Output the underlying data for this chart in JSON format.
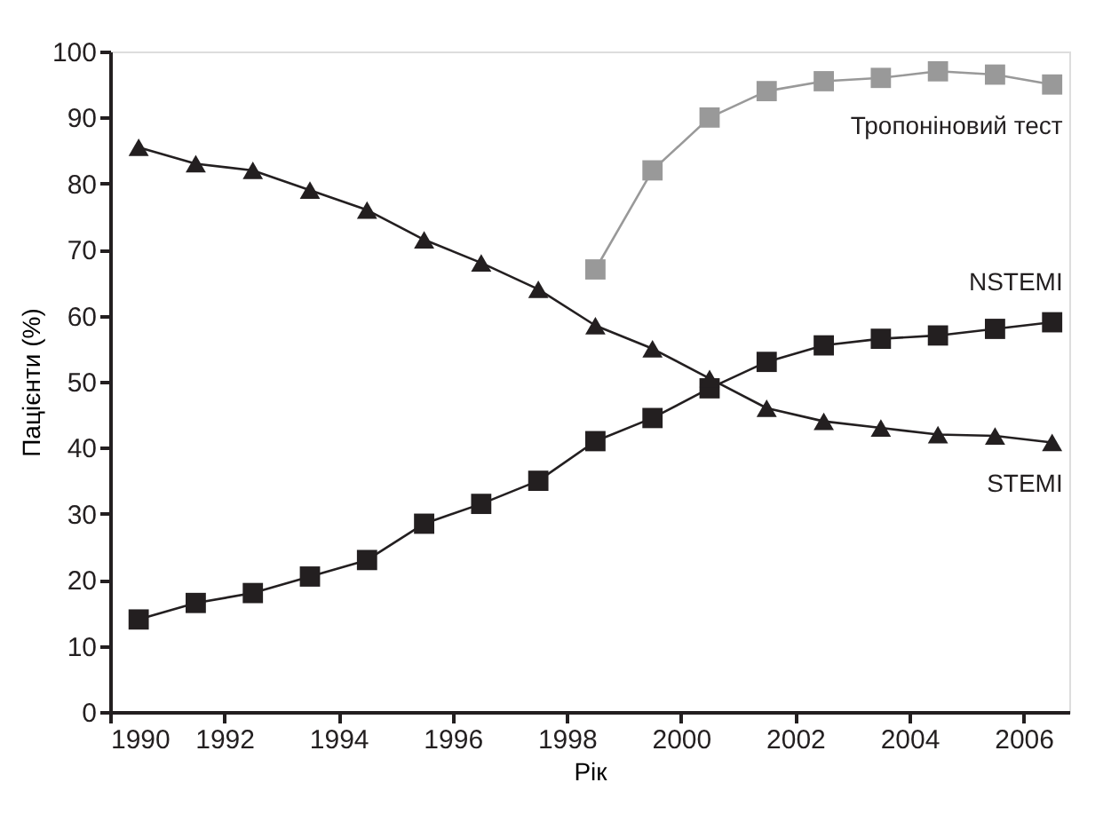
{
  "chart_data": {
    "type": "line",
    "xlabel": "Рік",
    "ylabel": "Пацієнти (%)",
    "xlim": [
      1990,
      2006.8
    ],
    "ylim": [
      0,
      100
    ],
    "xticks": [
      1990,
      1992,
      1994,
      1996,
      1998,
      2000,
      2002,
      2004,
      2006
    ],
    "yticks": [
      0,
      10,
      20,
      30,
      40,
      50,
      60,
      70,
      80,
      90,
      100
    ],
    "grid": false,
    "series": [
      {
        "name": "Тропоніновий тест",
        "color": "#999999",
        "marker": "square",
        "x": [
          1998.5,
          1999.5,
          2000.5,
          2001.5,
          2002.5,
          2003.5,
          2004.5,
          2005.5,
          2006.5
        ],
        "values": [
          67,
          82,
          90,
          94,
          95.5,
          96,
          97,
          96.5,
          95
        ]
      },
      {
        "name": "NSTEMI",
        "color": "#231f20",
        "marker": "square",
        "x": [
          1990.5,
          1991.5,
          1992.5,
          1993.5,
          1994.5,
          1995.5,
          1996.5,
          1997.5,
          1998.5,
          1999.5,
          2000.5,
          2001.5,
          2002.5,
          2003.5,
          2004.5,
          2005.5,
          2006.5
        ],
        "values": [
          14,
          16.5,
          18,
          20.5,
          23,
          28.5,
          31.5,
          35,
          41,
          44.5,
          49,
          53,
          55.5,
          56.5,
          57,
          58,
          59
        ]
      },
      {
        "name": "STEMI",
        "color": "#231f20",
        "marker": "triangle",
        "x": [
          1990.5,
          1991.5,
          1992.5,
          1993.5,
          1994.5,
          1995.5,
          1996.5,
          1997.5,
          1998.5,
          1999.5,
          2000.5,
          2001.5,
          2002.5,
          2003.5,
          2004.5,
          2005.5,
          2006.5
        ],
        "values": [
          85.5,
          83,
          82,
          79,
          76,
          71.5,
          68,
          64,
          58.5,
          55,
          50.5,
          46,
          44,
          43,
          42,
          41.8,
          40.8
        ]
      }
    ]
  }
}
